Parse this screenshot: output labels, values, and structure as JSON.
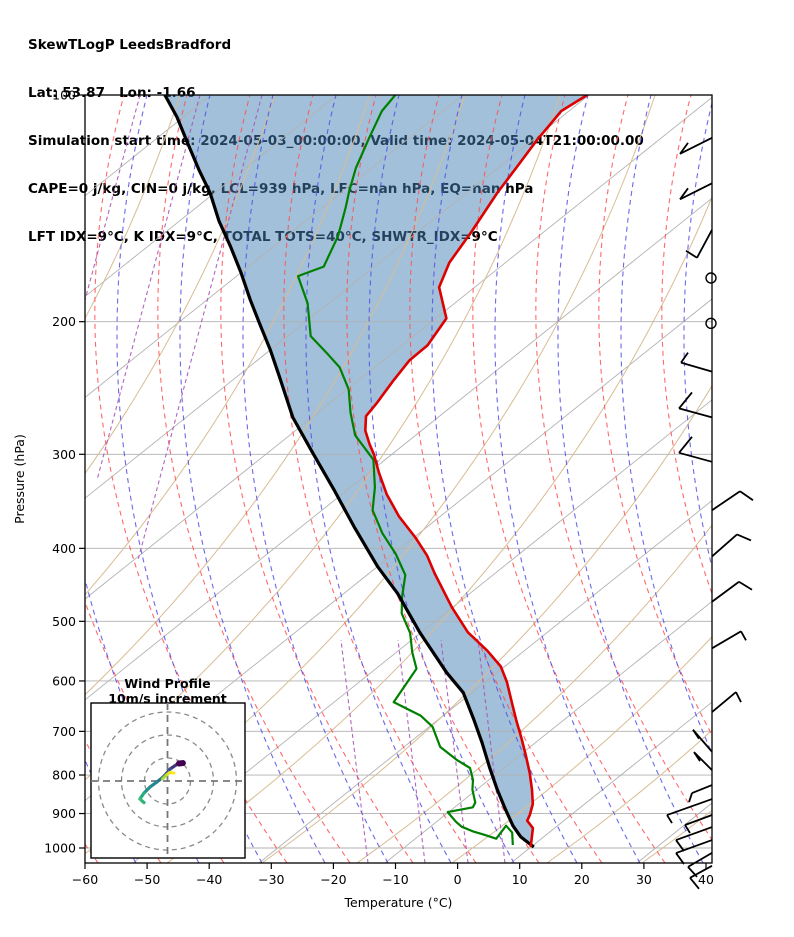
{
  "header": {
    "line1": "SkewTLogP LeedsBradford",
    "line2": "Lat: 53.87   Lon: -1.66",
    "line3": "Simulation start time: 2024-05-03_00:00:00, Valid time: 2024-05-04T21:00:00.00",
    "line4": "CAPE=0 j/kg, CIN=0 j/kg, LCL=939 hPa, LFC=nan hPa, EQ=nan hPa",
    "line5": "LFT IDX=9°C, K IDX=9°C, TOTAL TOTS=40°C, SHWTR_IDX=9°C"
  },
  "axes": {
    "xlabel": "Temperature (°C)",
    "ylabel": "Pressure (hPa)",
    "x_ticks": [
      {
        "v": -60,
        "label": "−60"
      },
      {
        "v": -50,
        "label": "−50"
      },
      {
        "v": -40,
        "label": "−40"
      },
      {
        "v": -30,
        "label": "−30"
      },
      {
        "v": -20,
        "label": "−20"
      },
      {
        "v": -10,
        "label": "−10"
      },
      {
        "v": 0,
        "label": "0"
      },
      {
        "v": 10,
        "label": "10"
      },
      {
        "v": 20,
        "label": "20"
      },
      {
        "v": 30,
        "label": "30"
      },
      {
        "v": 40,
        "label": "40"
      }
    ],
    "y_ticks": [
      {
        "v": 100,
        "label": "100"
      },
      {
        "v": 200,
        "label": "200"
      },
      {
        "v": 300,
        "label": "300"
      },
      {
        "v": 400,
        "label": "400"
      },
      {
        "v": 500,
        "label": "500"
      },
      {
        "v": 600,
        "label": "600"
      },
      {
        "v": 700,
        "label": "700"
      },
      {
        "v": 800,
        "label": "800"
      },
      {
        "v": 900,
        "label": "900"
      },
      {
        "v": 1000,
        "label": "1000"
      }
    ]
  },
  "chart_data": {
    "type": "line",
    "title": "SkewTLogP LeedsBradford",
    "x_axis": {
      "label": "Temperature (°C)",
      "min": -60,
      "max": 41,
      "skew_deg": 45
    },
    "y_axis": {
      "label": "Pressure (hPa)",
      "scale": "log",
      "top": 100,
      "bottom": 1047
    },
    "background": {
      "isotherm_color": "#b3b3b3",
      "dry_adiabat_tan_color": "#d8bc94",
      "dry_adiabat_red_color": "#ff5052",
      "moist_adiabat_blue_color": "#5050e8",
      "mixing_ratio_color": "#a855b8",
      "pressure_gridline_color": "#b0b0b0",
      "shade_color": "#4682b4",
      "shade_opacity": 0.5
    },
    "series": [
      {
        "name": "temperature",
        "color": "#dd0000",
        "width": 2.6,
        "points": [
          [
            100,
            -102.8
          ],
          [
            105,
            -104.4
          ],
          [
            115,
            -103.6
          ],
          [
            125,
            -102.5
          ],
          [
            135,
            -101.5
          ],
          [
            152,
            -99.4
          ],
          [
            167,
            -98.0
          ],
          [
            180,
            -95.7
          ],
          [
            198,
            -89.5
          ],
          [
            215,
            -88.2
          ],
          [
            225,
            -88.7
          ],
          [
            240,
            -88.0
          ],
          [
            256,
            -87.1
          ],
          [
            267,
            -86.7
          ],
          [
            279,
            -84.5
          ],
          [
            291,
            -81.6
          ],
          [
            300,
            -79.3
          ],
          [
            317,
            -75.6
          ],
          [
            339,
            -70.8
          ],
          [
            363,
            -65.2
          ],
          [
            387,
            -59.2
          ],
          [
            409,
            -54.4
          ],
          [
            432,
            -50.3
          ],
          [
            479,
            -42.1
          ],
          [
            517,
            -35.5
          ],
          [
            547,
            -29.4
          ],
          [
            574,
            -24.7
          ],
          [
            602,
            -21.2
          ],
          [
            642,
            -17.0
          ],
          [
            677,
            -13.5
          ],
          [
            716,
            -9.7
          ],
          [
            755,
            -6.2
          ],
          [
            796,
            -2.8
          ],
          [
            837,
            0.2
          ],
          [
            874,
            2.6
          ],
          [
            904,
            3.9
          ],
          [
            920,
            4.4
          ],
          [
            941,
            6.5
          ],
          [
            997,
            9.2
          ]
        ]
      },
      {
        "name": "parcel_trajectory",
        "color": "#000000",
        "width": 3.2,
        "points": [
          [
            100,
            -170.8
          ],
          [
            107,
            -165.3
          ],
          [
            116,
            -159.3
          ],
          [
            126,
            -153.1
          ],
          [
            135,
            -147.7
          ],
          [
            147,
            -141.8
          ],
          [
            159,
            -135.8
          ],
          [
            172,
            -130.0
          ],
          [
            187,
            -124.1
          ],
          [
            201,
            -118.8
          ],
          [
            218,
            -112.8
          ],
          [
            237,
            -106.9
          ],
          [
            268,
            -98.3
          ],
          [
            299,
            -89.3
          ],
          [
            334,
            -80.1
          ],
          [
            374,
            -70.9
          ],
          [
            423,
            -60.6
          ],
          [
            459,
            -53.1
          ],
          [
            518,
            -43.1
          ],
          [
            585,
            -32.4
          ],
          [
            622,
            -26.5
          ],
          [
            675,
            -20.5
          ],
          [
            725,
            -15.4
          ],
          [
            781,
            -10.3
          ],
          [
            837,
            -5.4
          ],
          [
            889,
            -0.9
          ],
          [
            934,
            2.9
          ],
          [
            966,
            5.9
          ],
          [
            997,
            9.7
          ]
        ]
      },
      {
        "name": "dewpoint",
        "color": "#008000",
        "width": 2.2,
        "points": [
          [
            100,
            -133.7
          ],
          [
            105,
            -133.3
          ],
          [
            114,
            -131.0
          ],
          [
            125,
            -128.3
          ],
          [
            134,
            -125.7
          ],
          [
            141,
            -123.6
          ],
          [
            154,
            -120.2
          ],
          [
            169,
            -117.6
          ],
          [
            174,
            -120.2
          ],
          [
            189,
            -114.3
          ],
          [
            209,
            -108.5
          ],
          [
            221,
            -102.8
          ],
          [
            230,
            -98.8
          ],
          [
            246,
            -93.8
          ],
          [
            264,
            -89.8
          ],
          [
            283,
            -85.4
          ],
          [
            305,
            -78.5
          ],
          [
            332,
            -73.8
          ],
          [
            356,
            -70.5
          ],
          [
            382,
            -65.2
          ],
          [
            407,
            -59.7
          ],
          [
            434,
            -54.8
          ],
          [
            465,
            -51.7
          ],
          [
            488,
            -49.2
          ],
          [
            518,
            -44.7
          ],
          [
            550,
            -41.2
          ],
          [
            578,
            -37.9
          ],
          [
            640,
            -36.2
          ],
          [
            667,
            -29.7
          ],
          [
            690,
            -26.0
          ],
          [
            734,
            -21.5
          ],
          [
            764,
            -16.7
          ],
          [
            783,
            -13.3
          ],
          [
            812,
            -10.9
          ],
          [
            837,
            -9.4
          ],
          [
            870,
            -6.9
          ],
          [
            883,
            -6.5
          ],
          [
            896,
            -9.8
          ],
          [
            923,
            -6.9
          ],
          [
            937,
            -5.2
          ],
          [
            951,
            -2.5
          ],
          [
            960,
            -0.3
          ],
          [
            972,
            2.3
          ],
          [
            934,
            1.8
          ],
          [
            954,
            3.9
          ],
          [
            991,
            6.0
          ]
        ]
      }
    ],
    "shaded_area": {
      "name": "parcel_to_temperature_area",
      "between": [
        "parcel_trajectory",
        "temperature"
      ]
    },
    "wind_barbs": [
      {
        "p": 114,
        "kind": "half",
        "shaft": [
          -32,
          16
        ],
        "tick": [
          8,
          -11
        ]
      },
      {
        "p": 131,
        "kind": "half",
        "shaft": [
          -32,
          16
        ],
        "tick": [
          8,
          -11
        ]
      },
      {
        "p": 151,
        "kind": "half",
        "shaft": [
          -15,
          28
        ],
        "tick": [
          -11,
          -7
        ]
      },
      {
        "p": 175,
        "kind": "calm"
      },
      {
        "p": 201,
        "kind": "calm"
      },
      {
        "p": 233,
        "kind": "half",
        "shaft": [
          -31,
          -9
        ],
        "tick": [
          7,
          -10
        ]
      },
      {
        "p": 268,
        "kind": "full",
        "shaft": [
          -33,
          -9
        ],
        "tick": [
          13,
          -16
        ]
      },
      {
        "p": 307,
        "kind": "full",
        "shaft": [
          -33,
          -9
        ],
        "tick": [
          13,
          -16
        ]
      },
      {
        "p": 356,
        "kind": "full",
        "shaft": [
          28,
          -19
        ],
        "tick": [
          13,
          9
        ]
      },
      {
        "p": 410,
        "kind": "full",
        "shaft": [
          25,
          -22
        ],
        "tick": [
          14,
          6
        ]
      },
      {
        "p": 471,
        "kind": "full",
        "shaft": [
          27,
          -20
        ],
        "tick": [
          13,
          8
        ]
      },
      {
        "p": 543,
        "kind": "half",
        "shaft": [
          29,
          -17
        ],
        "tick": [
          5,
          9
        ]
      },
      {
        "p": 660,
        "kind": "half",
        "shaft": [
          24,
          -20
        ],
        "tick": [
          5,
          10
        ]
      },
      {
        "p": 745,
        "kind": "half",
        "shaft": [
          -19,
          -22
        ],
        "tick": [
          6,
          9
        ]
      },
      {
        "p": 788,
        "kind": "half",
        "shaft": [
          -18,
          -18
        ],
        "tick": [
          6,
          9
        ]
      },
      {
        "p": 825,
        "kind": "half",
        "shaft": [
          -20,
          8
        ],
        "tick": [
          -3,
          9
        ]
      },
      {
        "p": 861,
        "kind": "half",
        "shaft": [
          -45,
          16
        ],
        "tick": [
          5,
          8
        ]
      },
      {
        "p": 904,
        "kind": "half",
        "shaft": [
          -27,
          10
        ],
        "tick": [
          5,
          8
        ]
      },
      {
        "p": 938,
        "kind": "full",
        "shaft": [
          -36,
          13
        ],
        "tick": [
          8,
          11
        ]
      },
      {
        "p": 976,
        "kind": "full",
        "shaft": [
          -36,
          13
        ],
        "tick": [
          8,
          11
        ]
      },
      {
        "p": 1015,
        "kind": "full",
        "shaft": [
          -24,
          14
        ],
        "tick": [
          9,
          10
        ]
      },
      {
        "p": 1056,
        "kind": "full",
        "shaft": [
          -22,
          12
        ],
        "tick": [
          9,
          11
        ]
      }
    ],
    "hodograph": {
      "title_line1": "Wind Profile",
      "title_line2": "10m/s increment",
      "ring_interval_ms": 10,
      "rings_ms": [
        10,
        20,
        30
      ],
      "trace_uv_ms": [
        [
          6.7,
          7.8
        ],
        [
          5.0,
          7.6
        ],
        [
          3.7,
          7.0
        ],
        [
          1.1,
          5.2
        ],
        [
          -0.7,
          3.0
        ],
        [
          -2.4,
          1.3
        ],
        [
          -4.6,
          -0.4
        ],
        [
          -7.6,
          -2.6
        ],
        [
          -10.2,
          -5.2
        ],
        [
          -12.0,
          -7.8
        ],
        [
          -11.0,
          -8.7
        ],
        [
          -10.2,
          -9.4
        ]
      ],
      "trace_colors": [
        "#440154",
        "#471365",
        "#46327e",
        "#3b528b",
        "#355f8d",
        "#2c728e",
        "#24868e",
        "#21918c",
        "#27ad81",
        "#42be71",
        "#31b57b"
      ],
      "branch_uv_ms": [
        [
          2.8,
          3.5
        ],
        [
          0.9,
          3.7
        ],
        [
          -0.9,
          2.2
        ],
        [
          -2.2,
          0.9
        ]
      ],
      "branch_colors": [
        "#fde725",
        "#e5e419",
        "#a5db36"
      ]
    }
  }
}
